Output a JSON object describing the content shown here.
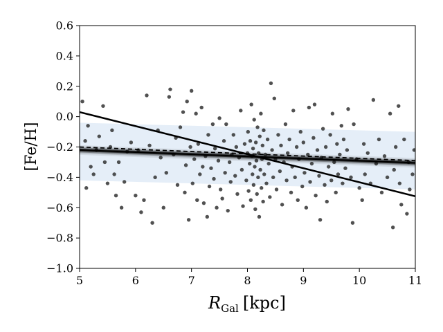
{
  "chart_data": {
    "type": "scatter",
    "title": "",
    "xlabel": {
      "main": "R",
      "sub": "Gal",
      "unit": "[kpc]"
    },
    "ylabel": "[Fe/H]",
    "xlim": [
      5,
      11
    ],
    "ylim": [
      -1.0,
      0.6
    ],
    "xticks": [
      5,
      6,
      7,
      8,
      9,
      10,
      11
    ],
    "xtick_labels": [
      "5",
      "6",
      "7",
      "8",
      "9",
      "10",
      "11"
    ],
    "yticks": [
      -1.0,
      -0.8,
      -0.6,
      -0.4,
      -0.2,
      0.0,
      0.2,
      0.4,
      0.6
    ],
    "ytick_labels": [
      "−1.0",
      "−0.8",
      "−0.6",
      "−0.4",
      "−0.2",
      "0.0",
      "0.2",
      "0.4",
      "0.6"
    ],
    "grid": false,
    "legend": null,
    "colors": {
      "points": "#333333",
      "band": "#dce8f5",
      "fit_lines": "#000000"
    },
    "scatter_band": {
      "x": [
        5,
        11
      ],
      "upper": [
        -0.04,
        -0.1
      ],
      "lower": [
        -0.42,
        -0.48
      ]
    },
    "fit_lines": [
      {
        "style": "solid-thick",
        "x": [
          5,
          11
        ],
        "y": [
          0.03,
          -0.525
        ]
      },
      {
        "style": "dashed",
        "x": [
          5,
          11
        ],
        "y": [
          -0.2,
          -0.29
        ]
      },
      {
        "style": "solid-bundle",
        "x": [
          5,
          11
        ],
        "y": [
          -0.22,
          -0.305
        ]
      }
    ],
    "points": [
      [
        5.05,
        0.1
      ],
      [
        5.1,
        -0.16
      ],
      [
        5.12,
        -0.47
      ],
      [
        5.15,
        -0.06
      ],
      [
        5.2,
        -0.33
      ],
      [
        5.25,
        -0.38
      ],
      [
        5.3,
        -0.22
      ],
      [
        5.35,
        -0.13
      ],
      [
        5.42,
        0.07
      ],
      [
        5.45,
        -0.3
      ],
      [
        5.5,
        -0.44
      ],
      [
        5.55,
        -0.2
      ],
      [
        5.58,
        -0.09
      ],
      [
        5.62,
        -0.38
      ],
      [
        5.65,
        -0.52
      ],
      [
        5.7,
        -0.3
      ],
      [
        5.75,
        -0.6
      ],
      [
        5.8,
        -0.43
      ],
      [
        5.85,
        -0.23
      ],
      [
        5.92,
        -0.17
      ],
      [
        6.0,
        -0.52
      ],
      [
        6.05,
        -0.22
      ],
      [
        6.1,
        -0.63
      ],
      [
        6.15,
        -0.55
      ],
      [
        6.2,
        0.14
      ],
      [
        6.25,
        -0.19
      ],
      [
        6.3,
        -0.7
      ],
      [
        6.35,
        -0.4
      ],
      [
        6.4,
        -0.09
      ],
      [
        6.45,
        -0.27
      ],
      [
        6.5,
        -0.6
      ],
      [
        6.55,
        -0.37
      ],
      [
        6.6,
        0.13
      ],
      [
        6.62,
        0.18
      ],
      [
        6.68,
        -0.25
      ],
      [
        6.72,
        -0.14
      ],
      [
        6.75,
        -0.45
      ],
      [
        6.8,
        -0.07
      ],
      [
        6.85,
        0.03
      ],
      [
        6.88,
        -0.5
      ],
      [
        6.9,
        -0.32
      ],
      [
        6.92,
        0.1
      ],
      [
        6.95,
        -0.68
      ],
      [
        6.98,
        -0.2
      ],
      [
        7.0,
        0.17
      ],
      [
        7.02,
        -0.44
      ],
      [
        7.05,
        -0.28
      ],
      [
        7.08,
        0.02
      ],
      [
        7.1,
        -0.55
      ],
      [
        7.12,
        -0.18
      ],
      [
        7.15,
        -0.38
      ],
      [
        7.18,
        0.06
      ],
      [
        7.2,
        -0.33
      ],
      [
        7.22,
        -0.57
      ],
      [
        7.25,
        -0.26
      ],
      [
        7.28,
        -0.66
      ],
      [
        7.3,
        -0.12
      ],
      [
        7.32,
        -0.46
      ],
      [
        7.35,
        -0.34
      ],
      [
        7.38,
        -0.05
      ],
      [
        7.4,
        -0.41
      ],
      [
        7.42,
        -0.21
      ],
      [
        7.45,
        -0.6
      ],
      [
        7.48,
        -0.29
      ],
      [
        7.5,
        -0.01
      ],
      [
        7.52,
        -0.48
      ],
      [
        7.55,
        -0.54
      ],
      [
        7.58,
        -0.16
      ],
      [
        7.6,
        -0.37
      ],
      [
        7.62,
        -0.05
      ],
      [
        7.65,
        -0.62
      ],
      [
        7.68,
        -0.3
      ],
      [
        7.7,
        -0.43
      ],
      [
        7.72,
        -0.25
      ],
      [
        7.75,
        -0.12
      ],
      [
        7.78,
        -0.39
      ],
      [
        7.8,
        -0.2
      ],
      [
        7.82,
        -0.51
      ],
      [
        7.85,
        -0.27
      ],
      [
        7.88,
        0.04
      ],
      [
        7.9,
        -0.35
      ],
      [
        7.92,
        -0.59
      ],
      [
        7.95,
        -0.18
      ],
      [
        7.98,
        -0.42
      ],
      [
        8.0,
        -0.24
      ],
      [
        8.01,
        -0.1
      ],
      [
        8.02,
        -0.49
      ],
      [
        8.04,
        -0.31
      ],
      [
        8.05,
        -0.16
      ],
      [
        8.06,
        -0.55
      ],
      [
        8.07,
        0.08
      ],
      [
        8.08,
        -0.26
      ],
      [
        8.09,
        -0.38
      ],
      [
        8.1,
        -0.21
      ],
      [
        8.11,
        -0.45
      ],
      [
        8.12,
        -0.02
      ],
      [
        8.13,
        -0.33
      ],
      [
        8.14,
        -0.61
      ],
      [
        8.15,
        -0.17
      ],
      [
        8.16,
        -0.29
      ],
      [
        8.17,
        -0.51
      ],
      [
        8.18,
        -0.07
      ],
      [
        8.19,
        -0.4
      ],
      [
        8.2,
        -0.24
      ],
      [
        8.21,
        -0.66
      ],
      [
        8.22,
        -0.13
      ],
      [
        8.23,
        -0.35
      ],
      [
        8.24,
        0.02
      ],
      [
        8.25,
        -0.47
      ],
      [
        8.26,
        -0.28
      ],
      [
        8.27,
        -0.19
      ],
      [
        8.28,
        -0.56
      ],
      [
        8.29,
        -0.09
      ],
      [
        8.3,
        -0.38
      ],
      [
        8.32,
        -0.25
      ],
      [
        8.34,
        -0.44
      ],
      [
        8.36,
        -0.15
      ],
      [
        8.38,
        -0.31
      ],
      [
        8.4,
        -0.53
      ],
      [
        8.42,
        0.22
      ],
      [
        8.44,
        -0.22
      ],
      [
        8.46,
        -0.4
      ],
      [
        8.48,
        0.12
      ],
      [
        8.5,
        -0.28
      ],
      [
        8.52,
        -0.48
      ],
      [
        8.55,
        -0.12
      ],
      [
        8.58,
        -0.36
      ],
      [
        8.6,
        -0.19
      ],
      [
        8.62,
        -0.58
      ],
      [
        8.65,
        -0.3
      ],
      [
        8.68,
        -0.05
      ],
      [
        8.7,
        -0.42
      ],
      [
        8.72,
        -0.24
      ],
      [
        8.75,
        -0.15
      ],
      [
        8.78,
        -0.5
      ],
      [
        8.8,
        -0.33
      ],
      [
        8.82,
        0.04
      ],
      [
        8.85,
        -0.4
      ],
      [
        8.88,
        -0.2
      ],
      [
        8.9,
        -0.55
      ],
      [
        8.92,
        -0.28
      ],
      [
        8.95,
        -0.1
      ],
      [
        8.98,
        -0.46
      ],
      [
        9.0,
        -0.17
      ],
      [
        9.02,
        -0.37
      ],
      [
        9.05,
        -0.6
      ],
      [
        9.08,
        -0.25
      ],
      [
        9.1,
        0.06
      ],
      [
        9.12,
        -0.43
      ],
      [
        9.15,
        -0.31
      ],
      [
        9.18,
        -0.14
      ],
      [
        9.2,
        0.08
      ],
      [
        9.22,
        -0.52
      ],
      [
        9.25,
        -0.22
      ],
      [
        9.28,
        -0.39
      ],
      [
        9.3,
        -0.68
      ],
      [
        9.32,
        -0.27
      ],
      [
        9.35,
        -0.08
      ],
      [
        9.38,
        -0.45
      ],
      [
        9.4,
        -0.2
      ],
      [
        9.42,
        -0.56
      ],
      [
        9.45,
        -0.33
      ],
      [
        9.48,
        -0.12
      ],
      [
        9.5,
        -0.42
      ],
      [
        9.52,
        0.02
      ],
      [
        9.55,
        -0.3
      ],
      [
        9.58,
        -0.5
      ],
      [
        9.6,
        -0.18
      ],
      [
        9.62,
        -0.38
      ],
      [
        9.65,
        -0.25
      ],
      [
        9.68,
        -0.06
      ],
      [
        9.7,
        -0.44
      ],
      [
        9.72,
        -0.15
      ],
      [
        9.75,
        -0.34
      ],
      [
        9.78,
        -0.22
      ],
      [
        9.8,
        0.05
      ],
      [
        9.85,
        -0.4
      ],
      [
        9.88,
        -0.7
      ],
      [
        9.9,
        -0.05
      ],
      [
        9.95,
        -0.28
      ],
      [
        10.0,
        -0.47
      ],
      [
        10.05,
        -0.55
      ],
      [
        10.08,
        -0.18
      ],
      [
        10.1,
        -0.38
      ],
      [
        10.15,
        -0.24
      ],
      [
        10.2,
        -0.44
      ],
      [
        10.25,
        0.11
      ],
      [
        10.3,
        -0.31
      ],
      [
        10.35,
        -0.15
      ],
      [
        10.4,
        -0.5
      ],
      [
        10.45,
        -0.26
      ],
      [
        10.5,
        -0.4
      ],
      [
        10.55,
        0.02
      ],
      [
        10.6,
        -0.73
      ],
      [
        10.62,
        -0.35
      ],
      [
        10.65,
        -0.2
      ],
      [
        10.7,
        0.07
      ],
      [
        10.72,
        -0.44
      ],
      [
        10.75,
        -0.58
      ],
      [
        10.8,
        -0.15
      ],
      [
        10.85,
        -0.64
      ],
      [
        10.88,
        -0.3
      ],
      [
        10.9,
        -0.48
      ],
      [
        10.95,
        -0.38
      ],
      [
        10.98,
        -0.22
      ]
    ]
  }
}
